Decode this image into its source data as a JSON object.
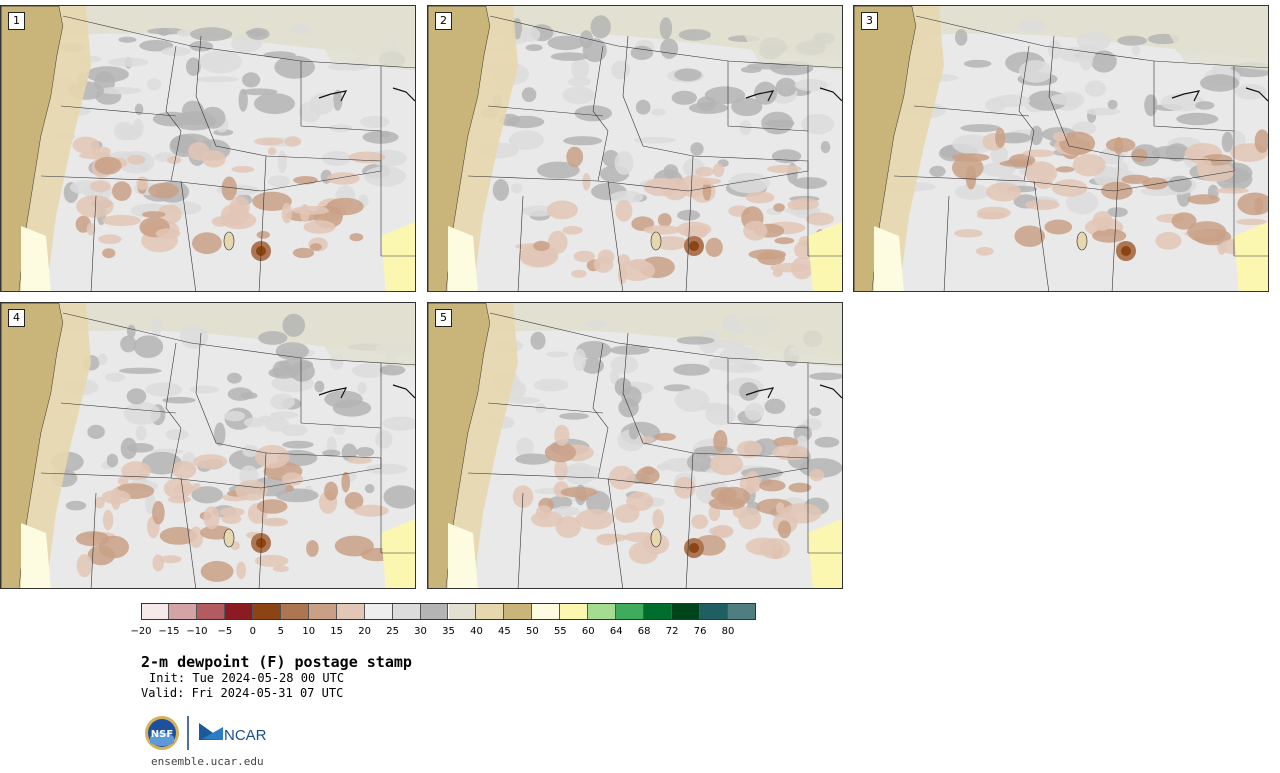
{
  "panels": [
    {
      "label": "1"
    },
    {
      "label": "2"
    },
    {
      "label": "3"
    },
    {
      "label": "4"
    },
    {
      "label": "5"
    }
  ],
  "colorbar": {
    "ticks": [
      "−20",
      "−15",
      "−10",
      "−5",
      "0",
      "5",
      "10",
      "15",
      "20",
      "25",
      "30",
      "35",
      "40",
      "45",
      "50",
      "55",
      "60",
      "64",
      "68",
      "72",
      "76",
      "80"
    ],
    "colors": [
      "#f5e9e9",
      "#d3a3a6",
      "#b25c62",
      "#8c1a22",
      "#8c4414",
      "#ad7552",
      "#c9a086",
      "#e2c6b6",
      "#eeeeee",
      "#dcdcdc",
      "#b4b4b4",
      "#e1e0d1",
      "#e6d7ae",
      "#c9b57a",
      "#fefce0",
      "#fbf7b0",
      "#a6dc92",
      "#41ab5d",
      "#006d2c",
      "#00441b",
      "#1f5f63",
      "#4f7d80"
    ]
  },
  "title": "2-m dewpoint (F) postage stamp",
  "init": "Init: Tue 2024-05-28 00 UTC",
  "valid": "Valid: Fri 2024-05-31 07 UTC",
  "logos": {
    "nsf": "NSF",
    "ncar": "NCAR"
  },
  "site": "ensemble.ucar.edu"
}
